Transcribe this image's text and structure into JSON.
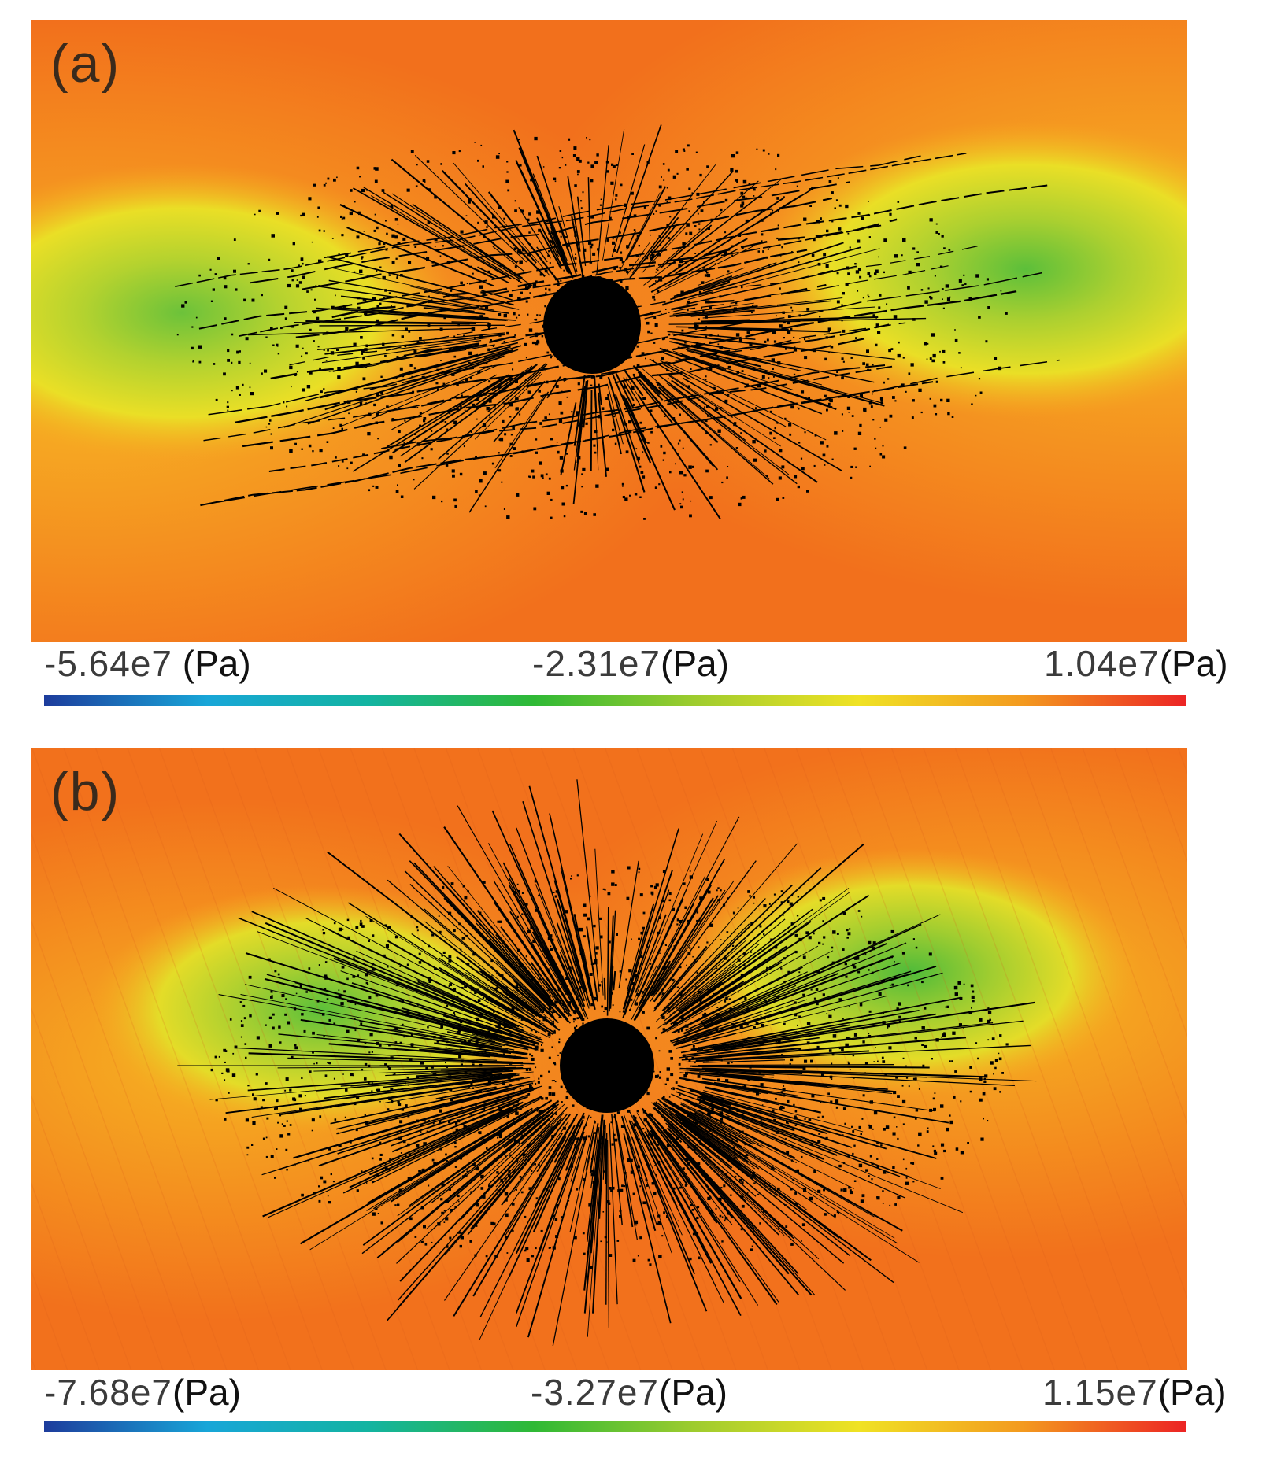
{
  "panels": [
    {
      "id": "a",
      "label": "(a)",
      "colorbar": {
        "ticks": [
          {
            "value": "-5.64e7",
            "unit": "(Pa)"
          },
          {
            "value": "-2.31e7",
            "unit": "(Pa)"
          },
          {
            "value": "1.04e7",
            "unit": "(Pa)"
          }
        ]
      }
    },
    {
      "id": "b",
      "label": "(b)",
      "colorbar": {
        "ticks": [
          {
            "value": "-7.68e7",
            "unit": "(Pa)"
          },
          {
            "value": "-3.27e7",
            "unit": "(Pa)"
          },
          {
            "value": "1.15e7",
            "unit": "(Pa)"
          }
        ]
      }
    }
  ],
  "colors": {
    "background_orange": "#f2721c",
    "yellow": "#eadf26",
    "green": "#4fbb3a",
    "crack": "#000000",
    "colormap": [
      "#1d3c9c",
      "#18a6d8",
      "#13b4a0",
      "#2fb935",
      "#9fcc2e",
      "#f0e224",
      "#f39a1f",
      "#ec2424"
    ]
  }
}
